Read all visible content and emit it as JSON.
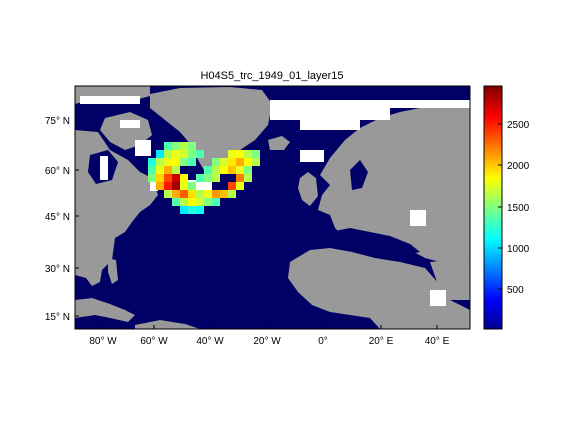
{
  "chart_data": {
    "type": "heatmap",
    "title": "H04S5_trc_1949_01_layer15",
    "x_ticks": [
      "80° W",
      "60° W",
      "40° W",
      "20° W",
      "0°",
      "20° E",
      "40° E"
    ],
    "y_ticks": [
      "15° N",
      "30° N",
      "45° N",
      "60° N",
      "75° N"
    ],
    "lon_range": [
      -95,
      50
    ],
    "lat_range": [
      10,
      85
    ],
    "colorbar": {
      "ticks": [
        500,
        1000,
        1500,
        2000,
        2500
      ],
      "range": [
        0,
        2950
      ],
      "colormap": "jet"
    },
    "colors": {
      "ocean": "#000066",
      "land": "#999999",
      "ice": "#ffffff"
    }
  }
}
